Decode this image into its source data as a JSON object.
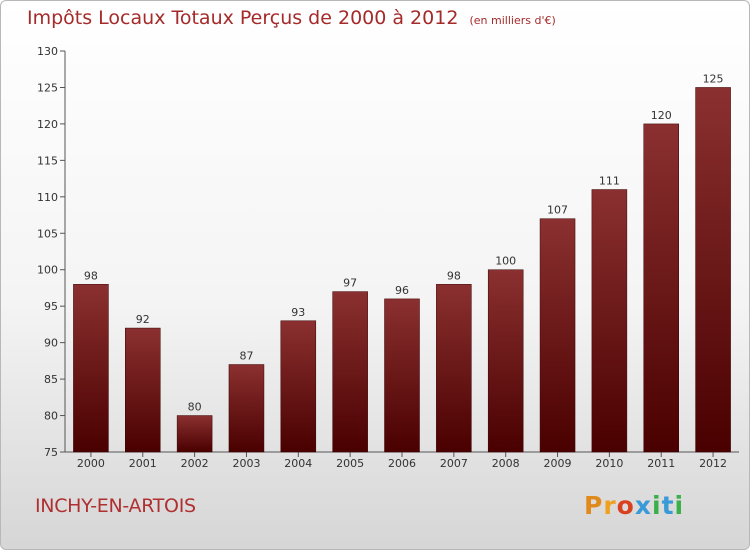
{
  "header": {
    "title": "Impôts Locaux Totaux Perçus de 2000 à 2012",
    "unit": "(en milliers d'€)"
  },
  "footer": {
    "commune": "INCHY-EN-ARTOIS",
    "logo_text": "Proxiti"
  },
  "colors": {
    "title": "#a52a2a",
    "bar_top": "#8b3030",
    "bar_bottom": "#4a0000",
    "axis": "#555555"
  },
  "chart_data": {
    "type": "bar",
    "title": "Impôts Locaux Totaux Perçus de 2000 à 2012",
    "xlabel": "",
    "ylabel": "",
    "categories": [
      "2000",
      "2001",
      "2002",
      "2003",
      "2004",
      "2005",
      "2006",
      "2007",
      "2008",
      "2009",
      "2010",
      "2011",
      "2012"
    ],
    "values": [
      98,
      92,
      80,
      87,
      93,
      97,
      96,
      98,
      100,
      107,
      111,
      120,
      125
    ],
    "ylim": [
      75,
      130
    ],
    "yticks": [
      75,
      80,
      85,
      90,
      95,
      100,
      105,
      110,
      115,
      120,
      125,
      130
    ],
    "grid": false,
    "data_labels": true
  }
}
